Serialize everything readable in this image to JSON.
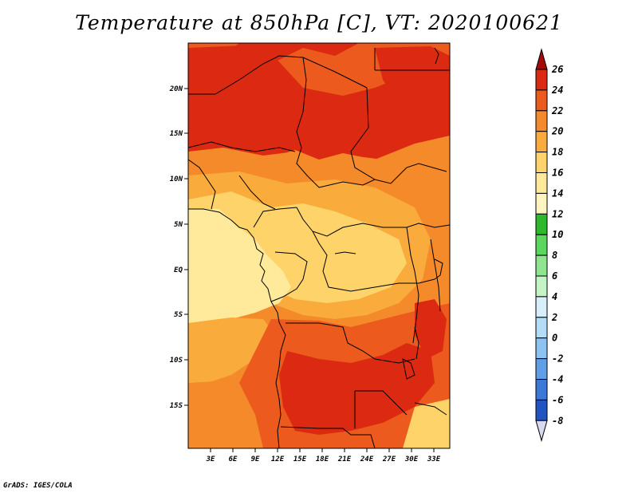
{
  "title": "Temperature at 850hPa [C], VT: 2020100621",
  "credit": "GrADS: IGES/COLA",
  "map": {
    "lon_labels": [
      "3E",
      "6E",
      "9E",
      "12E",
      "15E",
      "18E",
      "21E",
      "24E",
      "27E",
      "30E",
      "33E"
    ],
    "lat_labels": [
      "20N",
      "15N",
      "10N",
      "5N",
      "EQ",
      "5S",
      "10S",
      "15S"
    ],
    "land_colors": {
      "14_16": "#ffe99a",
      "16_18": "#fdd36a",
      "18_20": "#f9ab3c",
      "20_22": "#f48a2a",
      "22_24": "#ec5a1e",
      "24_26": "#dc2a12"
    }
  },
  "colorbar": {
    "labels": [
      "26",
      "24",
      "22",
      "20",
      "18",
      "16",
      "14",
      "12",
      "10",
      "8",
      "6",
      "4",
      "2",
      "0",
      "-2",
      "-4",
      "-6",
      "-8"
    ],
    "colors": [
      "#a50a0a",
      "#dc2a12",
      "#ec5a1e",
      "#f48a2a",
      "#f9ab3c",
      "#fdd36a",
      "#ffe99a",
      "#fff4c0",
      "#2eb82e",
      "#5cd65c",
      "#8fe58f",
      "#c6f3c6",
      "#d8eefa",
      "#b4dcf7",
      "#8cc3f0",
      "#609ee6",
      "#3c78d8",
      "#2353c2",
      "#1230a0",
      "#081578",
      "#d8d8f0"
    ]
  }
}
